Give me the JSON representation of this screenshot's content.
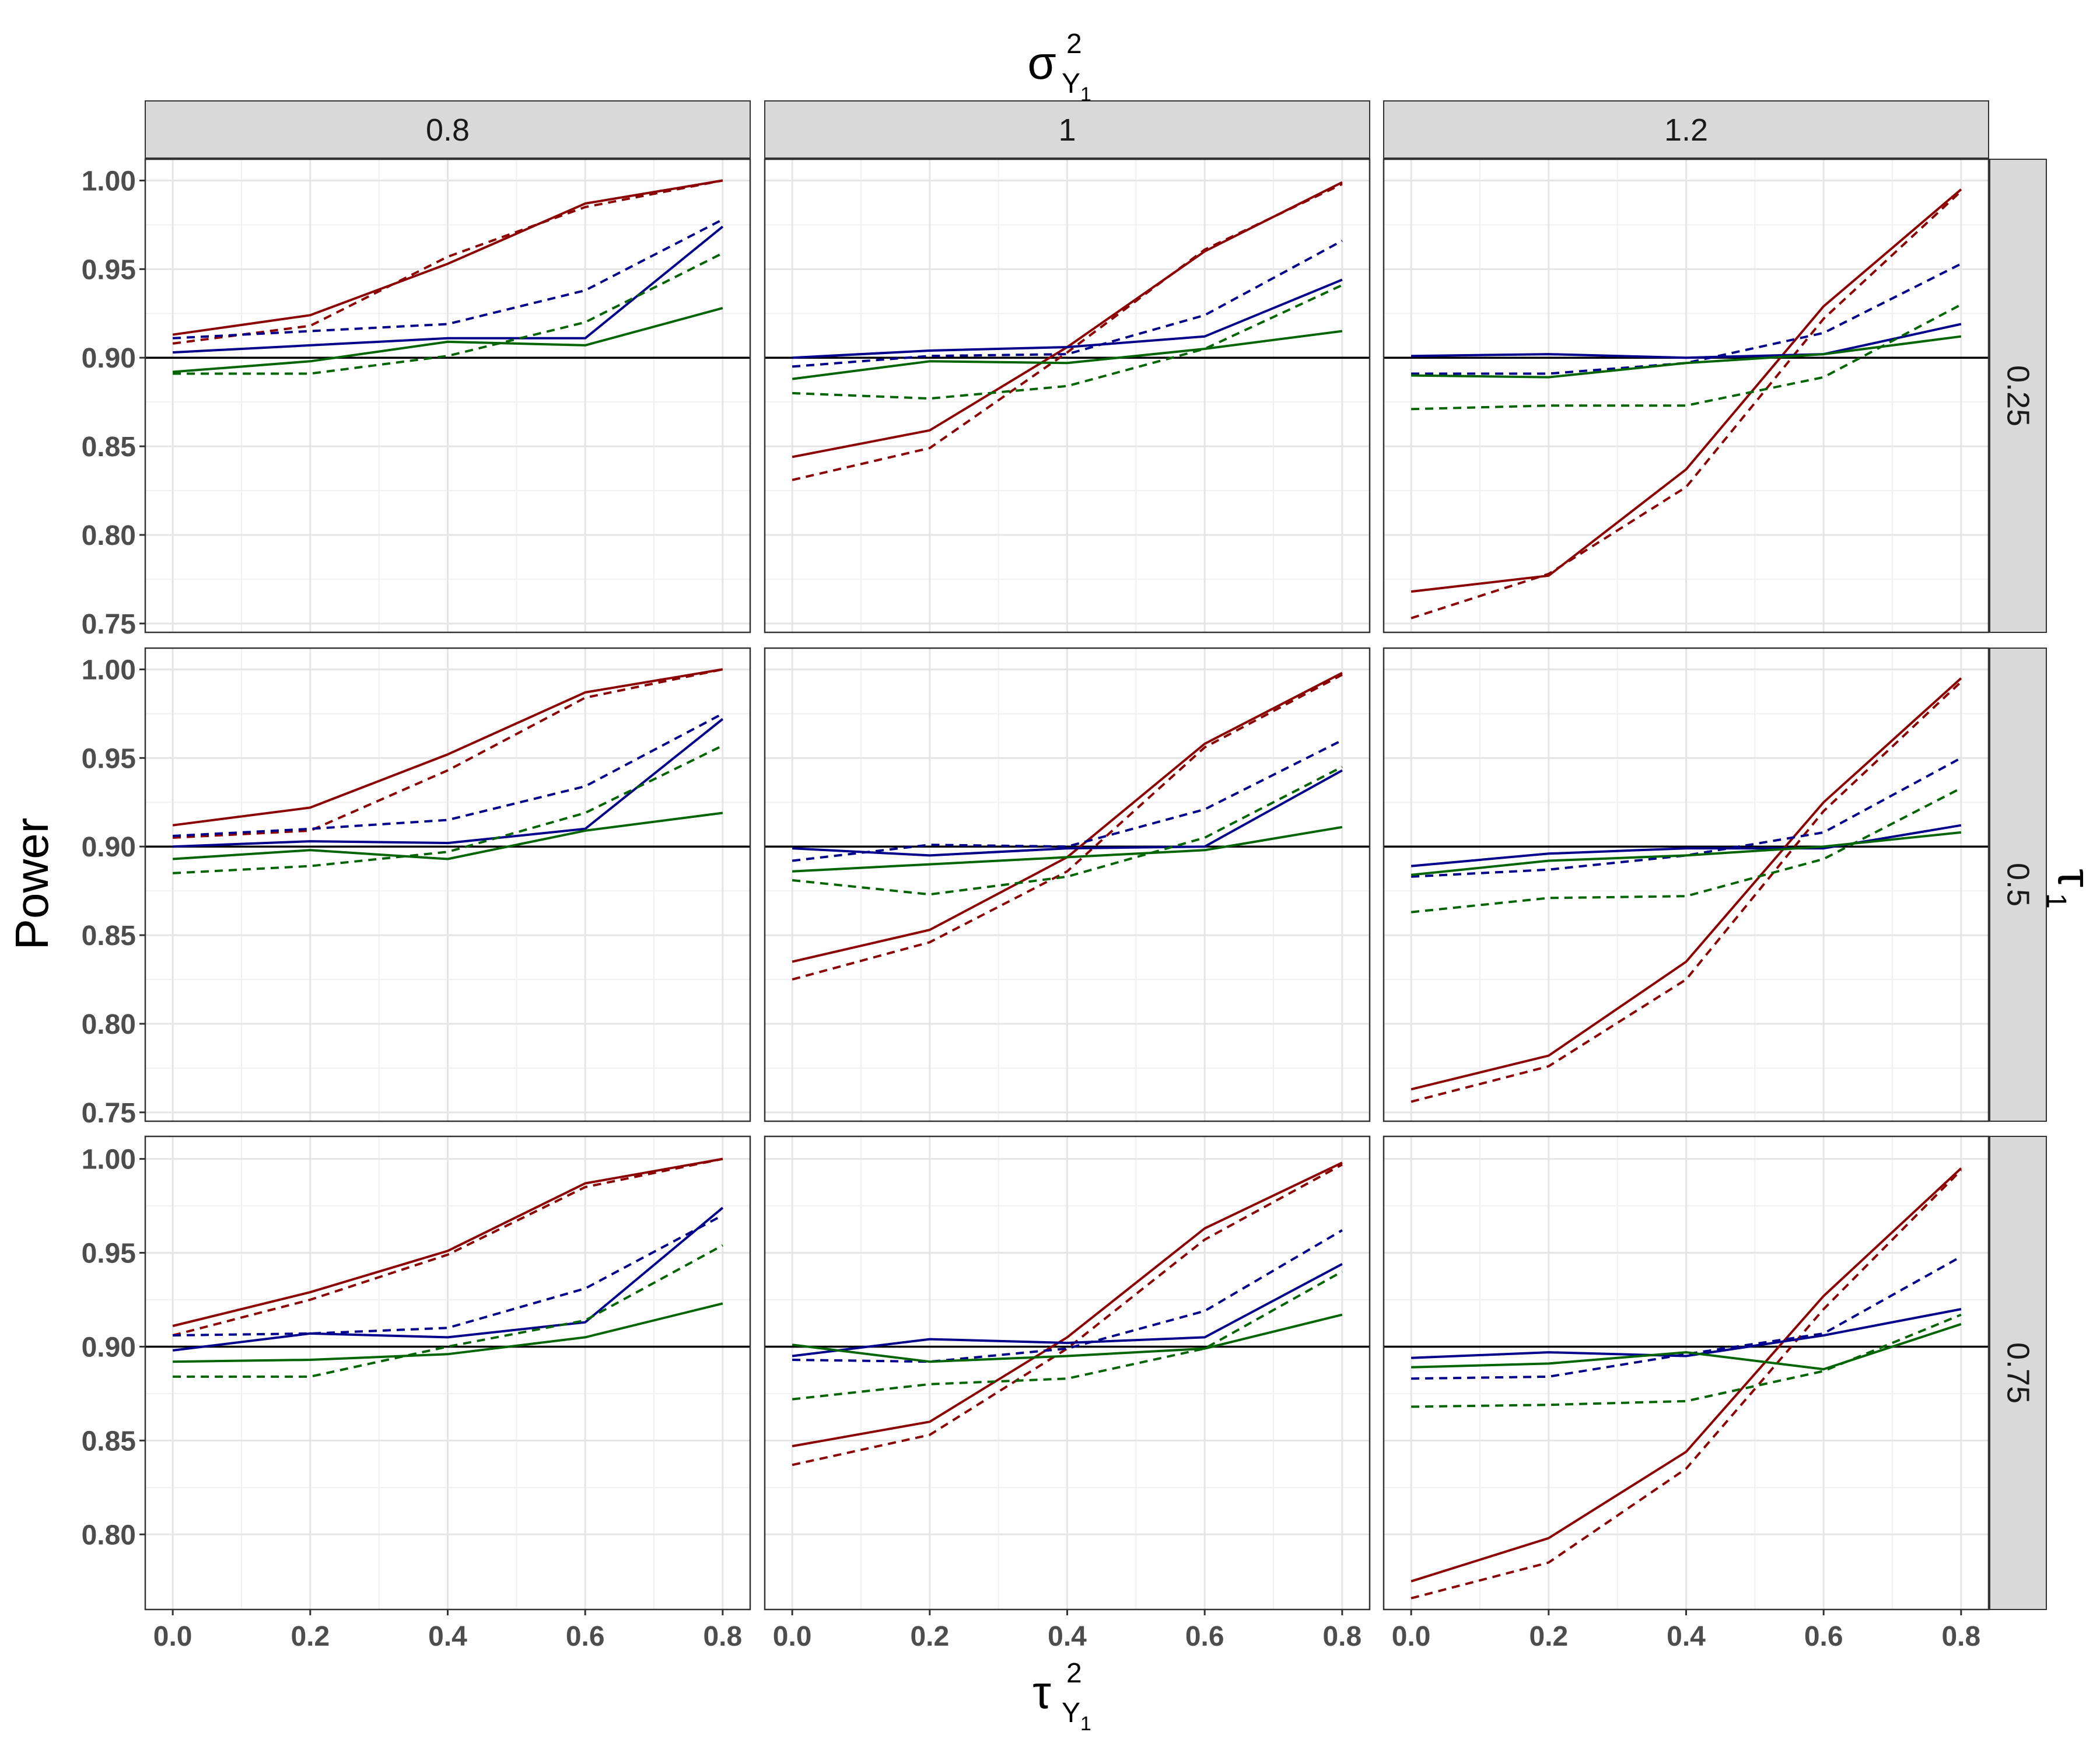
{
  "chart_data": {
    "type": "line",
    "layout": "facet-grid 3x3",
    "xlabel": {
      "base": "τ",
      "superscript": "2",
      "subscript": "Y",
      "subsubscript": "1"
    },
    "ylabel": "Power",
    "col_strip_title": {
      "base": "σ",
      "superscript": "2",
      "subscript": "Y",
      "subsubscript": "1"
    },
    "row_strip_title": {
      "base": "τ",
      "subscript": "1"
    },
    "col_facets": [
      "0.8",
      "1",
      "1.2"
    ],
    "row_facets": [
      "0.25",
      "0.5",
      "0.75"
    ],
    "x_ticks": [
      "0.0",
      "0.2",
      "0.4",
      "0.6",
      "0.8"
    ],
    "x": [
      0,
      0.2,
      0.4,
      0.6,
      0.8
    ],
    "xlim": [
      -0.04,
      0.84
    ],
    "rows": [
      {
        "ylim": [
          0.745,
          1.012
        ],
        "y_ticks": [
          "0.75",
          "0.80",
          "0.85",
          "0.90",
          "0.95",
          "1.00"
        ]
      },
      {
        "ylim": [
          0.745,
          1.012
        ],
        "y_ticks": [
          "0.75",
          "0.80",
          "0.85",
          "0.90",
          "0.95",
          "1.00"
        ]
      },
      {
        "ylim": [
          0.76,
          1.012
        ],
        "y_ticks": [
          "0.80",
          "0.85",
          "0.90",
          "0.95",
          "1.00"
        ]
      }
    ],
    "reference_line": 0.9,
    "grid": true,
    "series_styles": [
      {
        "color": "#8b0000",
        "dash": "solid"
      },
      {
        "color": "#8b0000",
        "dash": "dashed"
      },
      {
        "color": "#00008b",
        "dash": "solid"
      },
      {
        "color": "#00008b",
        "dash": "dashed"
      },
      {
        "color": "#006400",
        "dash": "solid"
      },
      {
        "color": "#006400",
        "dash": "dashed"
      }
    ],
    "panels": [
      {
        "row": 0,
        "col": 0,
        "series": [
          [
            0.913,
            0.924,
            0.953,
            0.987,
            1.0
          ],
          [
            0.908,
            0.918,
            0.957,
            0.985,
            1.0
          ],
          [
            0.903,
            0.907,
            0.911,
            0.911,
            0.974
          ],
          [
            0.911,
            0.915,
            0.919,
            0.938,
            0.978
          ],
          [
            0.892,
            0.898,
            0.909,
            0.907,
            0.928
          ],
          [
            0.891,
            0.891,
            0.901,
            0.92,
            0.959
          ]
        ]
      },
      {
        "row": 0,
        "col": 1,
        "series": [
          [
            0.844,
            0.859,
            0.906,
            0.96,
            0.999
          ],
          [
            0.831,
            0.849,
            0.903,
            0.961,
            0.998
          ],
          [
            0.9,
            0.904,
            0.906,
            0.912,
            0.944
          ],
          [
            0.895,
            0.901,
            0.902,
            0.924,
            0.966
          ],
          [
            0.888,
            0.898,
            0.897,
            0.905,
            0.915
          ],
          [
            0.88,
            0.877,
            0.884,
            0.905,
            0.941
          ]
        ]
      },
      {
        "row": 0,
        "col": 2,
        "series": [
          [
            0.768,
            0.777,
            0.837,
            0.929,
            0.995
          ],
          [
            0.753,
            0.778,
            0.827,
            0.922,
            0.994
          ],
          [
            0.901,
            0.902,
            0.9,
            0.902,
            0.919
          ],
          [
            0.891,
            0.891,
            0.897,
            0.914,
            0.953
          ],
          [
            0.89,
            0.889,
            0.897,
            0.902,
            0.912
          ],
          [
            0.871,
            0.873,
            0.873,
            0.889,
            0.93
          ]
        ]
      },
      {
        "row": 1,
        "col": 0,
        "series": [
          [
            0.912,
            0.922,
            0.952,
            0.987,
            1.0
          ],
          [
            0.905,
            0.909,
            0.943,
            0.984,
            1.0
          ],
          [
            0.9,
            0.903,
            0.902,
            0.91,
            0.972
          ],
          [
            0.906,
            0.91,
            0.915,
            0.934,
            0.975
          ],
          [
            0.893,
            0.898,
            0.893,
            0.909,
            0.919
          ],
          [
            0.885,
            0.889,
            0.897,
            0.919,
            0.957
          ]
        ]
      },
      {
        "row": 1,
        "col": 1,
        "series": [
          [
            0.835,
            0.853,
            0.894,
            0.958,
            0.998
          ],
          [
            0.825,
            0.846,
            0.886,
            0.956,
            0.997
          ],
          [
            0.899,
            0.895,
            0.899,
            0.9,
            0.943
          ],
          [
            0.892,
            0.901,
            0.9,
            0.921,
            0.96
          ],
          [
            0.886,
            0.89,
            0.894,
            0.898,
            0.911
          ],
          [
            0.881,
            0.873,
            0.883,
            0.905,
            0.945
          ]
        ]
      },
      {
        "row": 1,
        "col": 2,
        "series": [
          [
            0.763,
            0.782,
            0.835,
            0.925,
            0.995
          ],
          [
            0.756,
            0.776,
            0.825,
            0.92,
            0.993
          ],
          [
            0.889,
            0.896,
            0.899,
            0.899,
            0.912
          ],
          [
            0.883,
            0.887,
            0.895,
            0.908,
            0.95
          ],
          [
            0.884,
            0.892,
            0.895,
            0.9,
            0.908
          ],
          [
            0.863,
            0.871,
            0.872,
            0.893,
            0.933
          ]
        ]
      },
      {
        "row": 2,
        "col": 0,
        "series": [
          [
            0.911,
            0.929,
            0.951,
            0.987,
            1.0
          ],
          [
            0.906,
            0.925,
            0.949,
            0.985,
            1.0
          ],
          [
            0.898,
            0.907,
            0.905,
            0.913,
            0.974
          ],
          [
            0.906,
            0.907,
            0.91,
            0.931,
            0.97
          ],
          [
            0.892,
            0.893,
            0.896,
            0.905,
            0.923
          ],
          [
            0.884,
            0.884,
            0.9,
            0.914,
            0.954
          ]
        ]
      },
      {
        "row": 2,
        "col": 1,
        "series": [
          [
            0.847,
            0.86,
            0.905,
            0.963,
            0.998
          ],
          [
            0.837,
            0.853,
            0.899,
            0.957,
            0.997
          ],
          [
            0.895,
            0.904,
            0.902,
            0.905,
            0.944
          ],
          [
            0.893,
            0.892,
            0.899,
            0.919,
            0.962
          ],
          [
            0.901,
            0.892,
            0.895,
            0.899,
            0.917
          ],
          [
            0.872,
            0.88,
            0.883,
            0.899,
            0.94
          ]
        ]
      },
      {
        "row": 2,
        "col": 2,
        "series": [
          [
            0.775,
            0.798,
            0.844,
            0.927,
            0.995
          ],
          [
            0.766,
            0.785,
            0.835,
            0.92,
            0.994
          ],
          [
            0.894,
            0.897,
            0.895,
            0.906,
            0.92
          ],
          [
            0.883,
            0.884,
            0.896,
            0.907,
            0.948
          ],
          [
            0.889,
            0.891,
            0.897,
            0.888,
            0.912
          ],
          [
            0.868,
            0.869,
            0.871,
            0.887,
            0.917
          ]
        ]
      }
    ]
  }
}
